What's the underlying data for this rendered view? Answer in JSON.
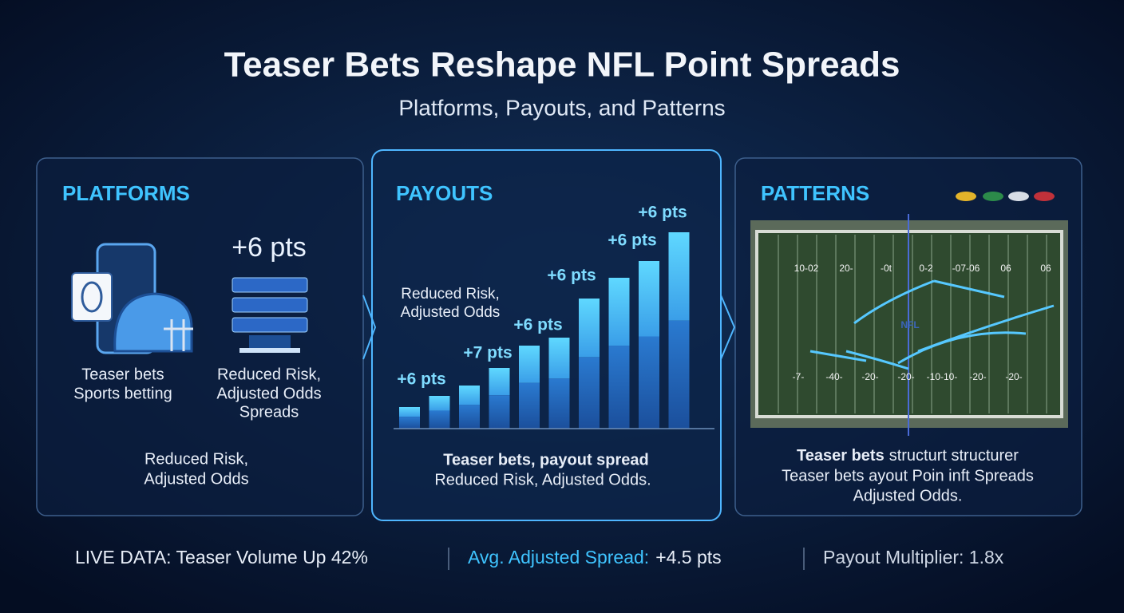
{
  "header": {
    "title": "Teaser Bets Reshape NFL Point Spreads",
    "subtitle": "Platforms, Payouts, and Patterns"
  },
  "panels": [
    {
      "heading": "PLATFORMS",
      "badge": "+6 pts",
      "left_caption": [
        "Teaser bets",
        "Sports betting"
      ],
      "right_caption": [
        "Reduced Risk,",
        "Adjusted Odds",
        "Spreads"
      ],
      "footer": [
        "Reduced Risk,",
        "Adjusted Odds"
      ]
    },
    {
      "heading": "PAYOUTS",
      "note": [
        "Reduced Risk,",
        "Adjusted Odds"
      ],
      "bar_labels": [
        "+6 pts",
        "+7 pts",
        "+6 pts",
        "+6 pts",
        "+6 pts",
        "+6 pts"
      ],
      "footer": [
        "Teaser bets, payout spread",
        "Reduced Risk, Adjusted Odds."
      ]
    },
    {
      "heading": "PATTERNS",
      "field_top": [
        "10-02",
        "20-",
        "-0t",
        "0-2",
        "-07-06",
        "06",
        "06"
      ],
      "field_bottom": [
        "-7-",
        "-40-",
        "-20-",
        "-20-",
        "-10-10-",
        "-20-",
        "-20-"
      ],
      "footer_lead": "Teaser bets",
      "footer": [
        "structurt structurer",
        "Teaser bets ayout Poin inft Spreads",
        "Adjusted Odds."
      ]
    }
  ],
  "ticker": {
    "item1": "LIVE DATA: Teaser Volume Up 42%",
    "item2_label": "Avg. Adjusted Spread:",
    "item2_value": "+4.5 pts",
    "item3": "Payout Multiplier: 1.8x"
  }
}
